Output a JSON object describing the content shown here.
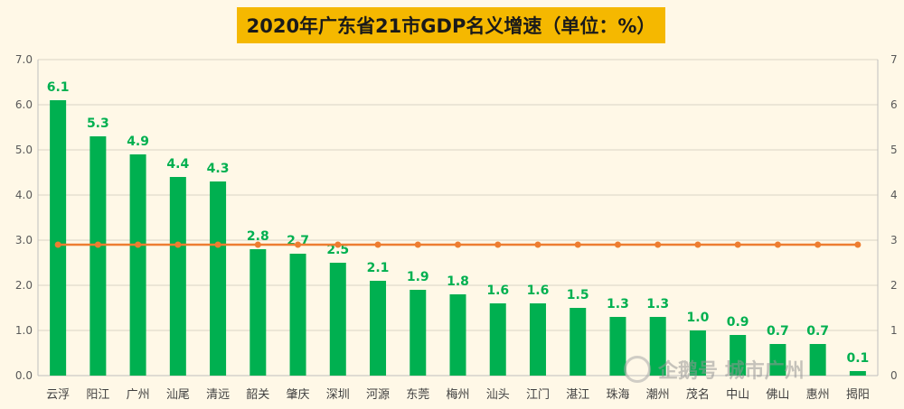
{
  "chart_data": {
    "type": "bar",
    "title": "2020年广东省21市GDP名义增速（单位：%）",
    "categories": [
      "云浮",
      "阳江",
      "广州",
      "汕尾",
      "清远",
      "韶关",
      "肇庆",
      "深圳",
      "河源",
      "东莞",
      "梅州",
      "汕头",
      "江门",
      "湛江",
      "珠海",
      "潮州",
      "茂名",
      "中山",
      "佛山",
      "惠州",
      "揭阳"
    ],
    "series": [
      {
        "values": [
          6.1,
          5.3,
          4.9,
          4.4,
          4.3,
          2.8,
          2.7,
          2.5,
          2.1,
          1.9,
          1.8,
          1.6,
          1.6,
          1.5,
          1.3,
          1.3,
          1.0,
          0.9,
          0.7,
          0.7,
          0.1
        ],
        "type": "bar"
      },
      {
        "values": [
          2.9,
          2.9,
          2.9,
          2.9,
          2.9,
          2.9,
          2.9,
          2.9,
          2.9,
          2.9,
          2.9,
          2.9,
          2.9,
          2.9,
          2.9,
          2.9,
          2.9,
          2.9,
          2.9,
          2.9,
          2.9
        ],
        "type": "line"
      }
    ],
    "data_labels": [
      "6.1",
      "5.3",
      "4.9",
      "4.4",
      "4.3",
      "2.8",
      "2.7",
      "2.5",
      "2.1",
      "1.9",
      "1.8",
      "1.6",
      "1.6",
      "1.5",
      "1.3",
      "1.3",
      "1.0",
      "0.9",
      "0.7",
      "0.7",
      "0.1"
    ],
    "ylim": [
      0,
      7
    ],
    "y_ticks": [
      "0.0",
      "1.0",
      "2.0",
      "3.0",
      "4.0",
      "5.0",
      "6.0",
      "7.0"
    ],
    "y2_ticks": [
      "0",
      "1",
      "2",
      "3",
      "4",
      "5",
      "6",
      "7"
    ],
    "grid": true,
    "legend": "none",
    "colors": {
      "bar": "#00b050",
      "line": "#ed7d31",
      "label": "#00b050",
      "background": "#fff8e7",
      "title_bg": "#f5b800"
    }
  },
  "watermark": {
    "text": "企鹅号 城市广州",
    "icon": "penguin-icon"
  }
}
